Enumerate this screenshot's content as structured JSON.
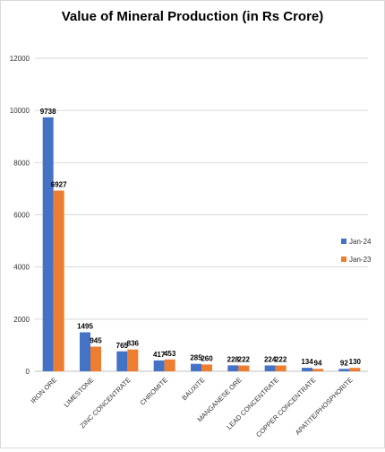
{
  "chart_data": {
    "type": "bar",
    "title": "Value of Mineral Production (in Rs Crore)",
    "xlabel": "",
    "ylabel": "",
    "categories": [
      "IRON ORE",
      "LIMESTONE",
      "ZINC CONCENTRATE",
      "CHROMITE",
      "BAUXITE",
      "MANGANESE ORE",
      "LEAD CONCENTRATE",
      "COPPER CONCENTRATE",
      "APATITE/PHOSPHORITE"
    ],
    "series": [
      {
        "name": "Jan-24",
        "color": "#4472C4",
        "values": [
          9738,
          1495,
          765,
          417,
          285,
          228,
          224,
          134,
          92
        ]
      },
      {
        "name": "Jan-23",
        "color": "#ED7D31",
        "values": [
          6927,
          945,
          836,
          453,
          260,
          222,
          222,
          94,
          130
        ]
      }
    ],
    "ylim": [
      0,
      12000
    ],
    "yticks": [
      0,
      2000,
      4000,
      6000,
      8000,
      10000,
      12000
    ],
    "grid": true,
    "legend_position": "right"
  }
}
